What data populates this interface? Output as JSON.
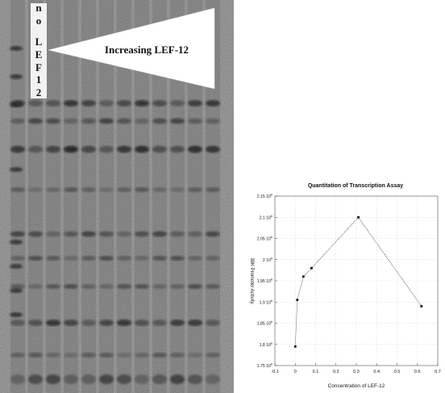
{
  "gel": {
    "no_lef_label": [
      "n",
      "o",
      "L",
      "E",
      "F",
      "1",
      "2"
    ],
    "wedge_label": "Increasing LEF-12"
  },
  "chart_data": {
    "type": "line",
    "title": "Quantitation of Transcription Assay",
    "xlabel": "Concentration of LEF-12",
    "ylabel": "39K Promoter Activity",
    "xlim": [
      -0.1,
      0.7
    ],
    "ylim": [
      1750000.0,
      2150000.0
    ],
    "x_ticks": [
      -0.1,
      0,
      0.1,
      0.2,
      0.3,
      0.4,
      0.5,
      0.6,
      0.7
    ],
    "x_tick_labels": [
      "-0.1",
      "0",
      "0.1",
      "0.2",
      "0.3",
      "0.4",
      "0.5",
      "0.6",
      "0.7"
    ],
    "y_ticks": [
      1750000.0,
      1800000.0,
      1850000.0,
      1900000.0,
      1950000.0,
      2000000.0,
      2050000.0,
      2100000.0,
      2150000.0
    ],
    "y_tick_labels": [
      {
        "mantissa": "1.75 10",
        "exp": "6"
      },
      {
        "mantissa": "1.8 10",
        "exp": "6"
      },
      {
        "mantissa": "1.85 10",
        "exp": "6"
      },
      {
        "mantissa": "1.9 10",
        "exp": "6"
      },
      {
        "mantissa": "1.95 10",
        "exp": "6"
      },
      {
        "mantissa": "2 10",
        "exp": "6"
      },
      {
        "mantissa": "2.05 10",
        "exp": "6"
      },
      {
        "mantissa": "2.1 10",
        "exp": "6"
      },
      {
        "mantissa": "2.15 10",
        "exp": "6"
      }
    ],
    "series": [
      {
        "x": [
          0,
          0.01,
          0.04,
          0.08,
          0.31,
          0.62
        ],
        "y": [
          1795000.0,
          1905000.0,
          1960000.0,
          1980000.0,
          2100000.0,
          1890000.0
        ]
      }
    ],
    "grid": true
  }
}
